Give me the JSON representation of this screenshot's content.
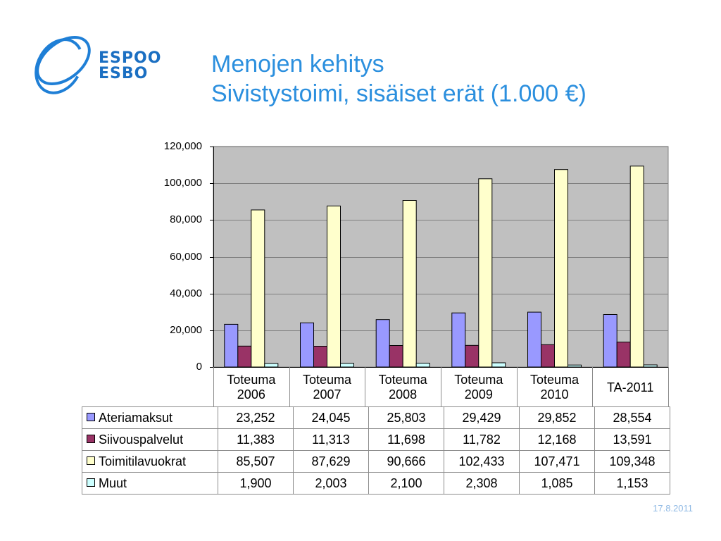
{
  "logo": {
    "line1": "ESPOO",
    "line2": "ESBO"
  },
  "title": {
    "line1": "Menojen kehitys",
    "line2": "Sivistystoimi, sisäiset erät (1.000 €)"
  },
  "footer": {
    "date": "17.8.2011"
  },
  "chart_data": {
    "type": "bar",
    "title": "",
    "ylim": [
      0,
      120000
    ],
    "yticks": [
      0,
      20000,
      40000,
      60000,
      80000,
      100000,
      120000
    ],
    "ytick_labels": [
      "0",
      "20,000",
      "40,000",
      "60,000",
      "80,000",
      "100,000",
      "120,000"
    ],
    "grid": true,
    "categories": [
      [
        "Toteuma",
        "2006"
      ],
      [
        "Toteuma",
        "2007"
      ],
      [
        "Toteuma",
        "2008"
      ],
      [
        "Toteuma",
        "2009"
      ],
      [
        "Toteuma",
        "2010"
      ],
      [
        "TA-2011"
      ]
    ],
    "series": [
      {
        "name": "Ateriamaksut",
        "color": "#9999ff",
        "values": [
          23252,
          24045,
          25803,
          29429,
          29852,
          28554
        ],
        "labels": [
          "23,252",
          "24,045",
          "25,803",
          "29,429",
          "29,852",
          "28,554"
        ]
      },
      {
        "name": "Siivouspalvelut",
        "color": "#993366",
        "values": [
          11383,
          11313,
          11698,
          11782,
          12168,
          13591
        ],
        "labels": [
          "11,383",
          "11,313",
          "11,698",
          "11,782",
          "12,168",
          "13,591"
        ]
      },
      {
        "name": "Toimitilavuokrat",
        "color": "#ffffcc",
        "values": [
          85507,
          87629,
          90666,
          102433,
          107471,
          109348
        ],
        "labels": [
          "85,507",
          "87,629",
          "90,666",
          "102,433",
          "107,471",
          "109,348"
        ]
      },
      {
        "name": "Muut",
        "color": "#ccffff",
        "values": [
          1900,
          2003,
          2100,
          2308,
          1085,
          1153
        ],
        "labels": [
          "1,900",
          "2,003",
          "2,100",
          "2,308",
          "1,085",
          "1,153"
        ]
      }
    ],
    "colors": {
      "plot_background": "#c0c0c0",
      "gridline": "#808080"
    }
  }
}
